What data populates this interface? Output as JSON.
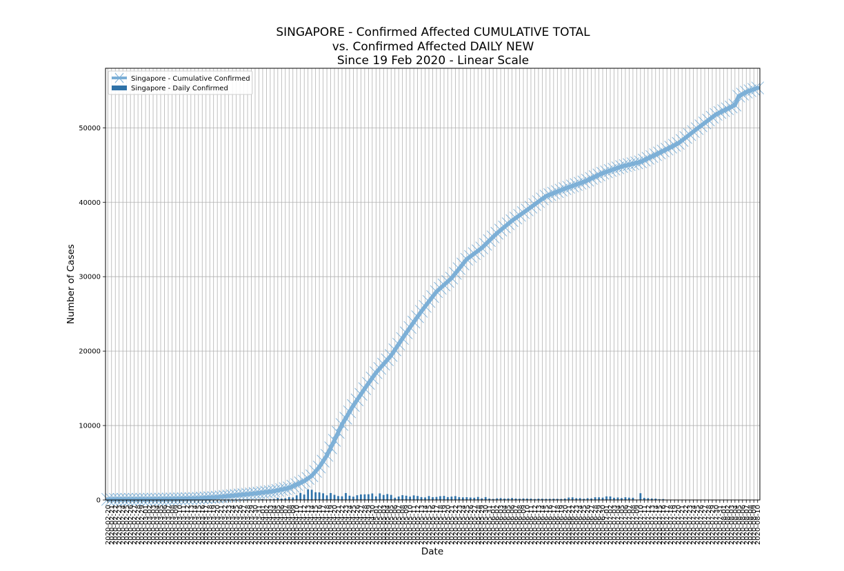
{
  "chart_data": {
    "type": "line",
    "title_lines": [
      "SINGAPORE - Confirmed Affected CUMULATIVE TOTAL",
      "vs. Confirmed Affected DAILY NEW",
      "Since 19 Feb 2020 - Linear Scale"
    ],
    "xlabel": "Date",
    "ylabel": "Number of Cases",
    "ylim": [
      0,
      58000
    ],
    "y_ticks": [
      0,
      10000,
      20000,
      30000,
      40000,
      50000
    ],
    "grid": true,
    "legend_position": "top-left",
    "x_start": "2020-02-20",
    "x_end": "2020-08-10",
    "series": [
      {
        "name": "Singapore - Cumulative Confirmed",
        "kind": "line",
        "color": "#7aaed6",
        "keypoints": [
          [
            "2020-02-20",
            85
          ],
          [
            "2020-02-25",
            91
          ],
          [
            "2020-03-01",
            106
          ],
          [
            "2020-03-05",
            117
          ],
          [
            "2020-03-10",
            160
          ],
          [
            "2020-03-15",
            226
          ],
          [
            "2020-03-20",
            385
          ],
          [
            "2020-03-25",
            631
          ],
          [
            "2020-03-30",
            879
          ],
          [
            "2020-04-04",
            1189
          ],
          [
            "2020-04-08",
            1623
          ],
          [
            "2020-04-12",
            2532
          ],
          [
            "2020-04-14",
            3252
          ],
          [
            "2020-04-16",
            4427
          ],
          [
            "2020-04-18",
            5992
          ],
          [
            "2020-04-20",
            8014
          ],
          [
            "2020-04-22",
            10141
          ],
          [
            "2020-04-25",
            12693
          ],
          [
            "2020-04-28",
            14951
          ],
          [
            "2020-05-01",
            17101
          ],
          [
            "2020-05-05",
            19410
          ],
          [
            "2020-05-09",
            22460
          ],
          [
            "2020-05-13",
            25346
          ],
          [
            "2020-05-17",
            27985
          ],
          [
            "2020-05-21",
            29812
          ],
          [
            "2020-05-25",
            32343
          ],
          [
            "2020-05-29",
            33860
          ],
          [
            "2020-06-02",
            35836
          ],
          [
            "2020-06-06",
            37527
          ],
          [
            "2020-06-10",
            38965
          ],
          [
            "2020-06-15",
            40818
          ],
          [
            "2020-06-20",
            41833
          ],
          [
            "2020-06-25",
            42736
          ],
          [
            "2020-06-30",
            43907
          ],
          [
            "2020-07-05",
            44800
          ],
          [
            "2020-07-10",
            45423
          ],
          [
            "2020-07-15",
            46630
          ],
          [
            "2020-07-20",
            47912
          ],
          [
            "2020-07-25",
            49888
          ],
          [
            "2020-07-30",
            51809
          ],
          [
            "2020-08-04",
            53051
          ],
          [
            "2020-08-05",
            54254
          ],
          [
            "2020-08-07",
            54797
          ],
          [
            "2020-08-10",
            55353
          ]
        ]
      },
      {
        "name": "Singapore - Daily Confirmed",
        "kind": "bar",
        "color": "#2f72a8",
        "values": [
          1,
          2,
          1,
          1,
          3,
          2,
          1,
          2,
          1,
          3,
          2,
          3,
          4,
          2,
          4,
          5,
          12,
          8,
          10,
          13,
          11,
          12,
          12,
          23,
          17,
          32,
          40,
          47,
          49,
          41,
          42,
          74,
          64,
          65,
          60,
          58,
          47,
          73,
          49,
          54,
          75,
          120,
          65,
          106,
          142,
          287,
          191,
          233,
          386,
          334,
          623,
          942,
          728,
          1426,
          1369,
          1037,
          1016,
          897,
          618,
          931,
          690,
          528,
          492,
          932,
          573,
          447,
          632,
          741,
          753,
          768,
          876,
          486,
          884,
          675,
          793,
          682,
          305,
          465,
          642,
          570,
          448,
          614,
          533,
          383,
          344,
          528,
          373,
          408,
          506,
          544,
          386,
          451,
          518,
          383,
          347,
          373,
          325,
          300,
          407,
          218,
          383,
          191,
          142,
          218,
          246,
          191,
          213,
          262,
          199,
          170,
          202,
          189,
          184,
          133,
          179,
          167,
          155,
          156,
          169,
          159,
          142,
          193,
          322,
          347,
          233,
          248,
          164,
          241,
          211,
          359,
          354,
          313,
          481,
          469,
          296,
          330,
          252,
          362,
          307,
          295,
          1,
          908,
          282,
          242,
          199,
          188,
          110,
          121
        ]
      }
    ]
  }
}
